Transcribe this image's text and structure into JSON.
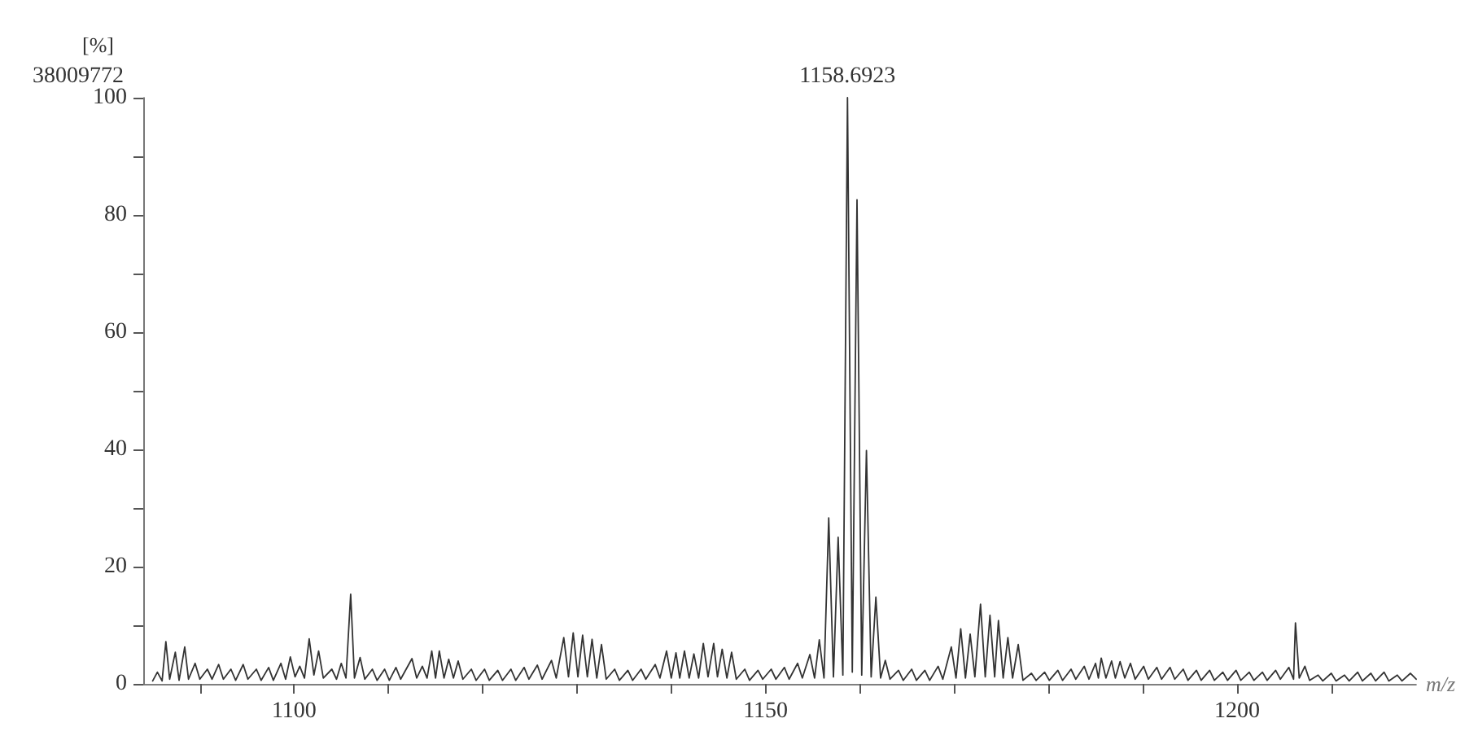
{
  "chart_data": {
    "type": "line",
    "ylabel": "[%]",
    "xlabel": "m/z",
    "annotations": [
      "38009772",
      {
        "text": "1158.6923",
        "x": 1158.69,
        "y": 100
      }
    ],
    "x": [
      1085.0,
      1085.5,
      1086.0,
      1086.4,
      1086.8,
      1087.4,
      1087.8,
      1088.4,
      1088.8,
      1089.5,
      1090.0,
      1090.8,
      1091.3,
      1092.0,
      1092.5,
      1093.3,
      1093.8,
      1094.6,
      1095.1,
      1096.0,
      1096.5,
      1097.3,
      1097.8,
      1098.6,
      1099.1,
      1099.6,
      1100.1,
      1100.6,
      1101.1,
      1101.6,
      1102.1,
      1102.6,
      1103.1,
      1104.0,
      1104.5,
      1105.0,
      1105.5,
      1106.0,
      1106.4,
      1107.0,
      1107.5,
      1108.3,
      1108.8,
      1109.6,
      1110.1,
      1110.8,
      1111.3,
      1112.5,
      1113.0,
      1113.6,
      1114.1,
      1114.6,
      1115.0,
      1115.4,
      1115.9,
      1116.4,
      1116.9,
      1117.4,
      1117.9,
      1118.8,
      1119.3,
      1120.2,
      1120.7,
      1121.6,
      1122.1,
      1123.0,
      1123.5,
      1124.4,
      1124.9,
      1125.8,
      1126.3,
      1127.3,
      1127.8,
      1128.6,
      1129.1,
      1129.6,
      1130.1,
      1130.6,
      1131.1,
      1131.6,
      1132.1,
      1132.6,
      1133.1,
      1134.0,
      1134.5,
      1135.4,
      1135.9,
      1136.8,
      1137.3,
      1138.3,
      1138.8,
      1139.5,
      1140.0,
      1140.5,
      1140.9,
      1141.4,
      1141.9,
      1142.4,
      1142.9,
      1143.4,
      1143.9,
      1144.5,
      1144.9,
      1145.4,
      1145.9,
      1146.4,
      1146.9,
      1147.8,
      1148.3,
      1149.2,
      1149.7,
      1150.6,
      1151.1,
      1152.0,
      1152.5,
      1153.4,
      1153.9,
      1154.7,
      1155.2,
      1155.7,
      1156.2,
      1156.7,
      1157.2,
      1157.7,
      1158.2,
      1158.69,
      1159.2,
      1159.7,
      1160.2,
      1160.7,
      1161.2,
      1161.7,
      1162.2,
      1162.7,
      1163.2,
      1164.1,
      1164.6,
      1165.5,
      1166.0,
      1166.9,
      1167.4,
      1168.3,
      1168.8,
      1169.7,
      1170.2,
      1170.7,
      1171.2,
      1171.7,
      1172.2,
      1172.8,
      1173.3,
      1173.8,
      1174.3,
      1174.7,
      1175.2,
      1175.7,
      1176.2,
      1176.8,
      1177.3,
      1178.2,
      1178.7,
      1179.6,
      1180.1,
      1181.0,
      1181.5,
      1182.4,
      1182.9,
      1183.8,
      1184.3,
      1185.0,
      1185.3,
      1185.6,
      1186.1,
      1186.7,
      1187.1,
      1187.6,
      1188.1,
      1188.7,
      1189.2,
      1190.1,
      1190.6,
      1191.5,
      1192.0,
      1192.9,
      1193.4,
      1194.3,
      1194.8,
      1195.7,
      1196.2,
      1197.1,
      1197.6,
      1198.5,
      1199.0,
      1199.9,
      1200.4,
      1201.3,
      1201.8,
      1202.7,
      1203.2,
      1204.1,
      1204.6,
      1205.5,
      1206.0,
      1206.2,
      1206.6,
      1207.2,
      1207.7,
      1208.6,
      1209.1,
      1210.0,
      1210.5,
      1211.4,
      1211.9,
      1212.8,
      1213.3,
      1214.2,
      1214.7,
      1215.6,
      1216.1,
      1217.0,
      1217.5,
      1218.4,
      1219.0
    ],
    "series": [
      {
        "color": "#333333",
        "values": [
          0.5,
          2,
          0.5,
          7.2,
          0.8,
          5.4,
          0.6,
          6.3,
          0.8,
          3.5,
          0.8,
          2.5,
          0.8,
          3.3,
          0.8,
          2.5,
          0.6,
          3.3,
          0.8,
          2.5,
          0.6,
          2.8,
          0.6,
          3.5,
          0.8,
          4.6,
          1.2,
          3,
          1,
          7.7,
          1.5,
          5.6,
          1,
          2.5,
          0.8,
          3.5,
          1,
          15.3,
          1,
          4.5,
          0.8,
          2.5,
          0.6,
          2.5,
          0.6,
          2.8,
          0.8,
          4.3,
          1,
          3,
          1,
          5.6,
          1,
          5.6,
          1,
          4.2,
          1,
          3.9,
          0.8,
          2.5,
          0.6,
          2.5,
          0.6,
          2.3,
          0.6,
          2.5,
          0.6,
          2.8,
          0.8,
          3.2,
          0.8,
          4,
          1,
          7.9,
          1.2,
          8.7,
          1.2,
          8.3,
          1.2,
          7.6,
          1,
          6.7,
          0.8,
          2.5,
          0.6,
          2.3,
          0.6,
          2.5,
          0.8,
          3.3,
          1,
          5.6,
          1,
          5.3,
          1,
          5.6,
          1,
          5.1,
          1,
          6.9,
          1.2,
          6.9,
          1.2,
          5.9,
          1,
          5.4,
          0.8,
          2.5,
          0.6,
          2.3,
          0.8,
          2.5,
          0.8,
          2.8,
          0.8,
          3.5,
          1,
          5,
          1,
          7.5,
          1,
          28.3,
          1.2,
          25,
          1.5,
          100,
          2,
          82.6,
          1.5,
          39.8,
          1.2,
          14.8,
          1,
          4,
          0.8,
          2.3,
          0.6,
          2.5,
          0.6,
          2.3,
          0.6,
          3,
          0.8,
          6.3,
          1,
          9.4,
          1,
          8.5,
          1.2,
          13.6,
          1.2,
          11.7,
          1.2,
          10.8,
          1,
          7.9,
          1,
          6.7,
          0.6,
          1.8,
          0.6,
          2,
          0.6,
          2.3,
          0.6,
          2.5,
          0.8,
          3,
          0.8,
          3.5,
          1,
          4.4,
          1,
          3.9,
          1,
          3.8,
          1,
          3.5,
          0.8,
          3,
          0.8,
          2.8,
          0.8,
          2.8,
          0.8,
          2.5,
          0.6,
          2.3,
          0.6,
          2.3,
          0.6,
          2,
          0.6,
          2.3,
          0.6,
          2,
          0.6,
          2,
          0.6,
          2.3,
          0.8,
          2.8,
          0.8,
          10.4,
          1,
          3,
          0.6,
          1.5,
          0.5,
          1.8,
          0.5,
          1.5,
          0.5,
          2,
          0.5,
          1.8,
          0.5,
          2,
          0.5,
          1.5,
          0.5,
          1.8,
          0.8
        ]
      }
    ],
    "xlim": [
      1084,
      1219
    ],
    "xticks": [
      {
        "value": 1090,
        "label": null
      },
      1100,
      {
        "value": 1110,
        "label": null
      },
      {
        "value": 1120,
        "label": null
      },
      {
        "value": 1130,
        "label": null
      },
      {
        "value": 1140,
        "label": null
      },
      1150,
      {
        "value": 1160,
        "label": null
      },
      {
        "value": 1170,
        "label": null
      },
      {
        "value": 1180,
        "label": null
      },
      {
        "value": 1190,
        "label": null
      },
      1200,
      {
        "value": 1210,
        "label": null
      }
    ],
    "ylim": [
      0,
      100
    ],
    "yticks": [
      0,
      {
        "value": 10,
        "label": null
      },
      20,
      {
        "value": 30,
        "label": null
      },
      40,
      {
        "value": 50,
        "label": null
      },
      60,
      {
        "value": 70,
        "label": null
      },
      80,
      {
        "value": 90,
        "label": null
      },
      100
    ],
    "marker": "none",
    "line_style": "solid",
    "grid": false
  }
}
